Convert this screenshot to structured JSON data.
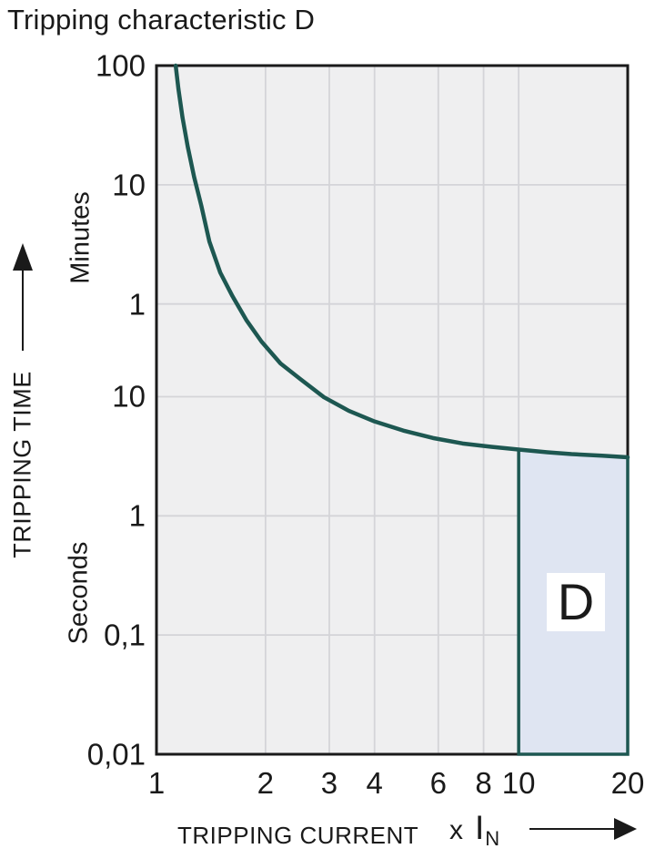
{
  "chart_data": {
    "type": "line",
    "title": "Tripping characteristic D",
    "x_axis": {
      "label": "TRIPPING CURRENT",
      "unit_prefix": "x",
      "unit_symbol": "I",
      "unit_subscript": "N",
      "scale": "log",
      "range": [
        1,
        20
      ],
      "ticks": [
        {
          "v": 1,
          "label": "1",
          "grid": false
        },
        {
          "v": 2,
          "label": "2",
          "grid": true
        },
        {
          "v": 3,
          "label": "3",
          "grid": true
        },
        {
          "v": 4,
          "label": "4",
          "grid": true
        },
        {
          "v": 6,
          "label": "6",
          "grid": true
        },
        {
          "v": 8,
          "label": "8",
          "grid": true
        },
        {
          "v": 10,
          "label": "10",
          "grid": true
        },
        {
          "v": 20,
          "label": "20",
          "grid": false
        }
      ]
    },
    "y_axis": {
      "label": "TRIPPING TIME",
      "scale": "log",
      "range_seconds": [
        0.01,
        6000
      ],
      "unit_sections": [
        "Minutes",
        "Seconds"
      ],
      "ticks": [
        {
          "seconds": 6000,
          "label": "100",
          "grid": false
        },
        {
          "seconds": 600,
          "label": "10",
          "grid": true
        },
        {
          "seconds": 60,
          "label": "1",
          "grid": true
        },
        {
          "seconds": 10,
          "label": "10",
          "grid": true
        },
        {
          "seconds": 1,
          "label": "1",
          "grid": true
        },
        {
          "seconds": 0.1,
          "label": "0,1",
          "grid": true
        },
        {
          "seconds": 0.01,
          "label": "0,01",
          "grid": false
        }
      ]
    },
    "series": [
      {
        "name": "tripping-time-curve",
        "color": "#1d5751",
        "points": [
          [
            1.13,
            6000
          ],
          [
            1.15,
            3800
          ],
          [
            1.18,
            2200
          ],
          [
            1.22,
            1250
          ],
          [
            1.27,
            700
          ],
          [
            1.33,
            400
          ],
          [
            1.4,
            200
          ],
          [
            1.5,
            110
          ],
          [
            1.62,
            70
          ],
          [
            1.77,
            44
          ],
          [
            1.95,
            29
          ],
          [
            2.2,
            19
          ],
          [
            2.5,
            14
          ],
          [
            2.9,
            9.9
          ],
          [
            3.4,
            7.6
          ],
          [
            4.0,
            6.2
          ],
          [
            4.8,
            5.2
          ],
          [
            5.8,
            4.5
          ],
          [
            7.0,
            4.05
          ],
          [
            8.4,
            3.8
          ],
          [
            10,
            3.6
          ],
          [
            12,
            3.42
          ],
          [
            14,
            3.3
          ],
          [
            17,
            3.2
          ],
          [
            20,
            3.1
          ]
        ]
      }
    ],
    "region": {
      "label": "D",
      "x_from": 10,
      "x_to": 20,
      "y_from_seconds": 0.01,
      "fill": "#dfe5f2",
      "border": "#1d5751"
    },
    "colors": {
      "plot_background": "#efeff0",
      "gridline": "#d4d4d8",
      "plot_border": "#1a1a1a",
      "text": "#1a1a1a",
      "curve": "#1d5751"
    }
  }
}
